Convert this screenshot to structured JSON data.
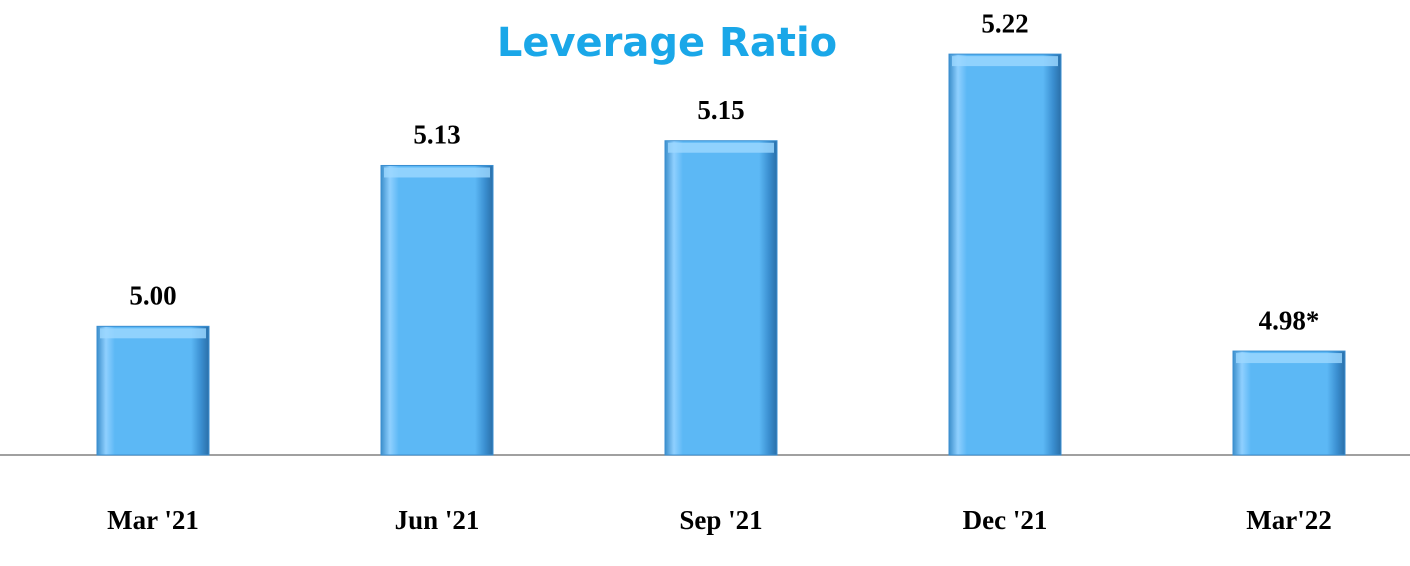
{
  "chart_data": {
    "type": "bar",
    "title": "Leverage Ratio",
    "categories": [
      "Mar '21",
      "Jun '21",
      "Sep '21",
      "Dec '21",
      "Mar'22"
    ],
    "values": [
      5.0,
      5.13,
      5.15,
      5.22,
      4.98
    ],
    "value_labels": [
      "5.00",
      "5.13",
      "5.15",
      "5.22",
      "4.98*"
    ],
    "color": "#5cb8f5",
    "ylim": [
      4.896,
      5.25
    ]
  }
}
